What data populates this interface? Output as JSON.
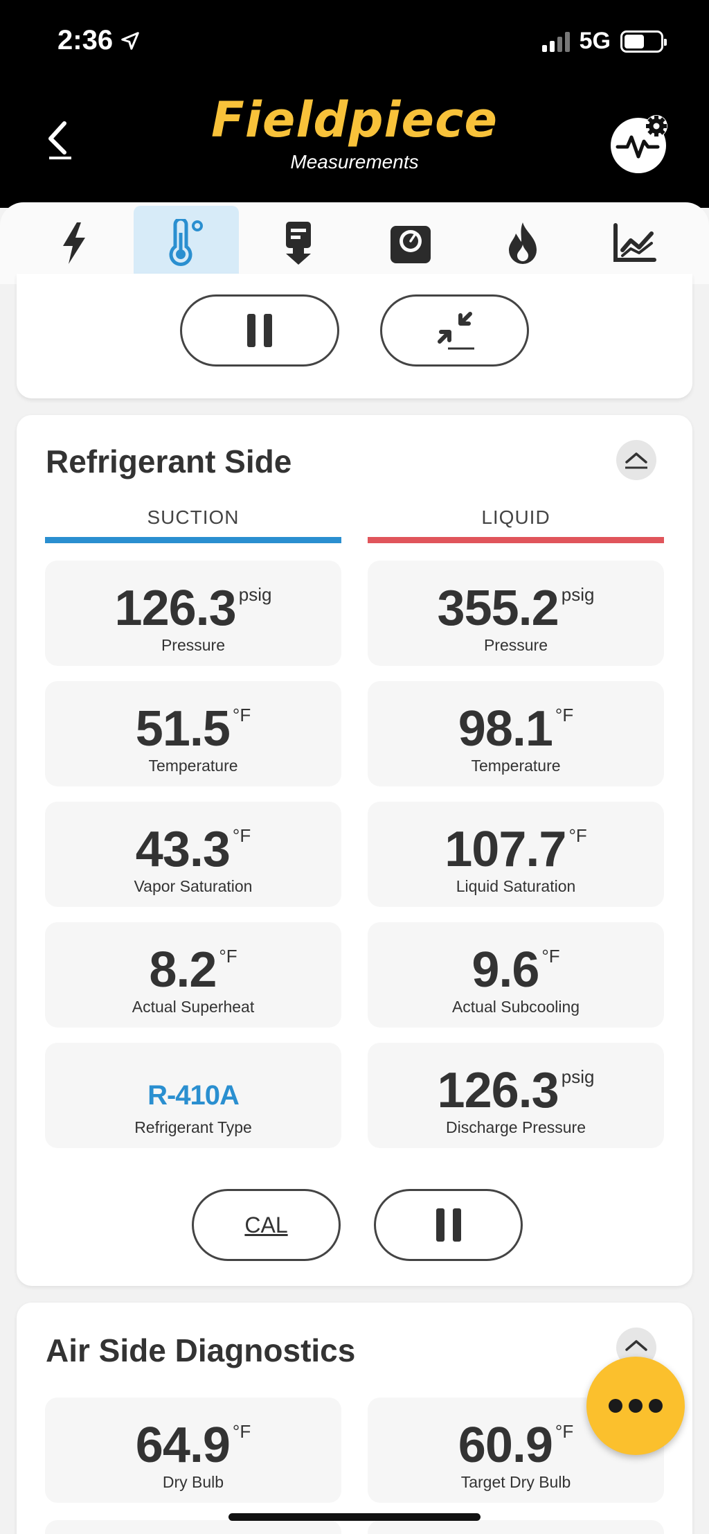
{
  "status_bar": {
    "time": "2:36",
    "network": "5G",
    "location_icon": "location-arrow-icon",
    "battery_level": 0.55
  },
  "header": {
    "brand": "Fieldpiece",
    "subtitle": "Measurements",
    "brand_color": "#f8c23a",
    "back_icon": "chevron-left-icon",
    "settings_icon": "activity-gear-icon"
  },
  "tabs": [
    {
      "icon": "lightning-icon",
      "active": false
    },
    {
      "icon": "thermometer-icon",
      "active": true
    },
    {
      "icon": "vacuum-icon",
      "active": false
    },
    {
      "icon": "scale-icon",
      "active": false
    },
    {
      "icon": "flame-icon",
      "active": false
    },
    {
      "icon": "chart-icon",
      "active": false
    }
  ],
  "top_controls": {
    "pause_icon": "pause-icon",
    "zero_icon": "compress-arrows-icon"
  },
  "refrigerant": {
    "title": "Refrigerant Side",
    "suction_label": "SUCTION",
    "liquid_label": "LIQUID",
    "suction_color": "#2a8fd0",
    "liquid_color": "#e0555b",
    "suction": [
      {
        "value": "126.3",
        "unit": "psig",
        "label": "Pressure"
      },
      {
        "value": "51.5",
        "unit": "°F",
        "label": "Temperature"
      },
      {
        "value": "43.3",
        "unit": "°F",
        "label": "Vapor Saturation"
      },
      {
        "value": "8.2",
        "unit": "°F",
        "label": "Actual Superheat"
      },
      {
        "value": "R-410A",
        "unit": "",
        "label": "Refrigerant Type"
      }
    ],
    "liquid": [
      {
        "value": "355.2",
        "unit": "psig",
        "label": "Pressure"
      },
      {
        "value": "98.1",
        "unit": "°F",
        "label": "Temperature"
      },
      {
        "value": "107.7",
        "unit": "°F",
        "label": "Liquid Saturation"
      },
      {
        "value": "9.6",
        "unit": "°F",
        "label": "Actual Subcooling"
      },
      {
        "value": "126.3",
        "unit": "psig",
        "label": "Discharge Pressure"
      }
    ],
    "cal_label": "CAL"
  },
  "air": {
    "title": "Air Side Diagnostics",
    "tiles": [
      {
        "value": "64.9",
        "unit": "°F",
        "label": "Dry Bulb"
      },
      {
        "value": "60.9",
        "unit": "°F",
        "label": "Target Dry Bulb"
      }
    ]
  },
  "fab_icon": "more-dots-icon"
}
